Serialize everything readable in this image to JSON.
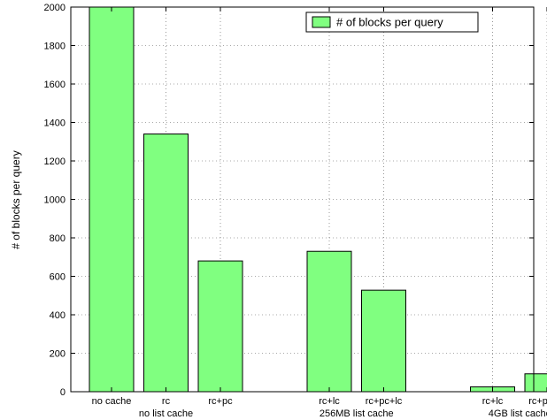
{
  "chart_data": {
    "type": "bar",
    "ylabel": "# of blocks per query",
    "ylim": [
      0,
      2000
    ],
    "yticks": [
      0,
      200,
      400,
      600,
      800,
      1000,
      1200,
      1400,
      1600,
      1800,
      2000
    ],
    "grid": true,
    "legend": {
      "position": "top-right",
      "entries": [
        "# of blocks per query"
      ]
    },
    "bar_color": "#80ff80",
    "groups": [
      {
        "label": "no list cache",
        "bars": [
          {
            "category": "no cache",
            "value": 2000
          },
          {
            "category": "rc",
            "value": 1340
          },
          {
            "category": "rc+pc",
            "value": 680
          }
        ]
      },
      {
        "label": "256MB list cache",
        "bars": [
          {
            "category": "rc+lc",
            "value": 730
          },
          {
            "category": "rc+pc+lc",
            "value": 528
          }
        ]
      },
      {
        "label": "4GB list cache",
        "bars": [
          {
            "category": "rc+lc",
            "value": 25
          },
          {
            "category": "rc+pc+lc",
            "value": 93
          }
        ]
      }
    ]
  }
}
